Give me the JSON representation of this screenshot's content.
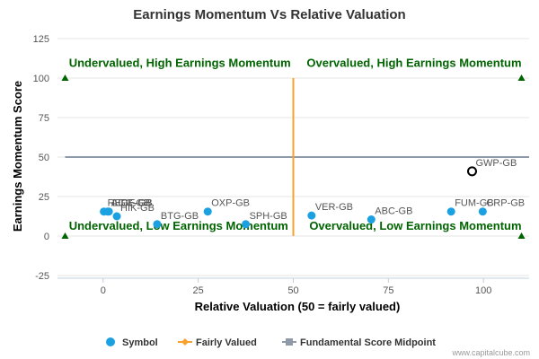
{
  "chart_data": {
    "type": "scatter",
    "title": "Earnings Momentum Vs Relative Valuation",
    "xlabel": "Relative Valuation (50 = fairly valued)",
    "ylabel": "Earnings Momentum Score",
    "xlim": [
      -12,
      112
    ],
    "ylim": [
      -25,
      125
    ],
    "xticks": [
      "0",
      "25",
      "50",
      "75",
      "100"
    ],
    "yticks": [
      "-25",
      "0",
      "25",
      "50",
      "75",
      "100",
      "125"
    ],
    "grid": "horizontal",
    "points": [
      {
        "label": "REGF-GB",
        "x": 0.2,
        "y": 15.5,
        "highlight": false
      },
      {
        "label": "AGC-GB",
        "x": 1.2,
        "y": 15.5,
        "highlight": false
      },
      {
        "label": "LIDE-GB",
        "x": 1.5,
        "y": 15.5,
        "highlight": false
      },
      {
        "label": "HIK-GB",
        "x": 3.6,
        "y": 12.5,
        "highlight": false
      },
      {
        "label": "BTG-GB",
        "x": 14.2,
        "y": 7.5,
        "highlight": false
      },
      {
        "label": "OXP-GB",
        "x": 27.5,
        "y": 15.5,
        "highlight": false
      },
      {
        "label": "SPH-GB",
        "x": 37.5,
        "y": 7.5,
        "highlight": false
      },
      {
        "label": "VER-GB",
        "x": 54.8,
        "y": 13.0,
        "highlight": false
      },
      {
        "label": "ABC-GB",
        "x": 70.5,
        "y": 10.5,
        "highlight": false
      },
      {
        "label": "FUM-GB",
        "x": 91.5,
        "y": 15.5,
        "highlight": false
      },
      {
        "label": "CRP-GB",
        "x": 99.8,
        "y": 15.5,
        "highlight": false
      },
      {
        "label": "GWP-GB",
        "x": 97.0,
        "y": 41.0,
        "highlight": true
      }
    ],
    "fairly_valued_line": {
      "x": 50,
      "y": [
        0,
        100
      ]
    },
    "midpoint_line": {
      "y": 50,
      "x": [
        -10,
        112
      ]
    },
    "quadrant_labels": [
      {
        "text": "Undervalued, High Earnings Momentum",
        "x": -9,
        "y": 107,
        "anchor": "start"
      },
      {
        "text": "Overvalued, High Earnings Momentum",
        "x": 110,
        "y": 107,
        "anchor": "end"
      },
      {
        "text": "Undervalued, Low Earnings Momentum",
        "x": -9,
        "y": 4,
        "anchor": "start"
      },
      {
        "text": "Overvalued, Low Earnings Momentum",
        "x": 110,
        "y": 4,
        "anchor": "end"
      }
    ],
    "corner_markers": [
      {
        "x": -10,
        "y": 100
      },
      {
        "x": 110,
        "y": 100
      },
      {
        "x": -10,
        "y": 0
      },
      {
        "x": 110,
        "y": 0
      }
    ],
    "legend": {
      "position": "bottom",
      "items": [
        {
          "name": "Symbol",
          "marker": "circle",
          "color": "#1ba1e2"
        },
        {
          "name": "Fairly Valued",
          "marker": "line-diamond",
          "color": "#f7a22d"
        },
        {
          "name": "Fundamental Score Midpoint",
          "marker": "line-square",
          "color": "#8e9aa8"
        }
      ]
    },
    "colors": {
      "point": "#1ba1e2",
      "highlight_stroke": "#000000",
      "fairly_valued": "#f7a22d",
      "midpoint": "#8e9aa8",
      "quadrant_text": "#006400",
      "corner_marker": "#006400"
    }
  },
  "credit": "www.capitalcube.com"
}
